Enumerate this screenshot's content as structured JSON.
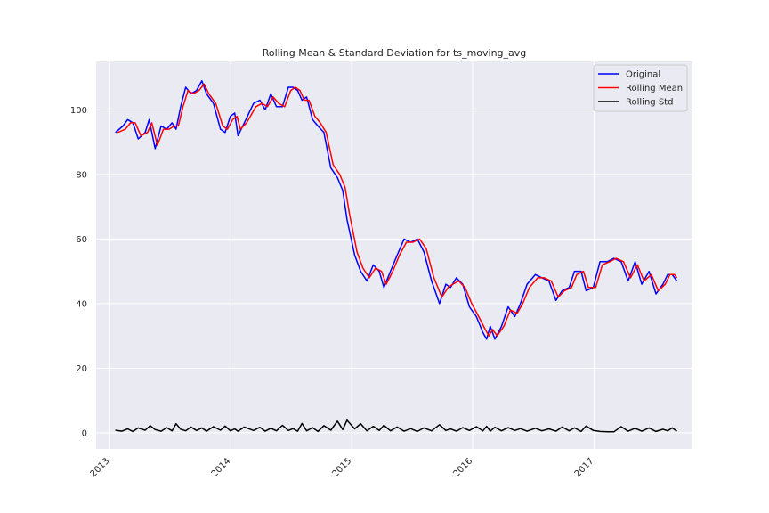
{
  "chart_data": {
    "type": "line",
    "title": "Rolling Mean & Standard Deviation for ts_moving_avg",
    "xlabel": "",
    "ylabel": "",
    "x_ticks": [
      "2013",
      "2014",
      "2015",
      "2016",
      "2017"
    ],
    "y_ticks": [
      0,
      20,
      40,
      60,
      80,
      100
    ],
    "xlim": [
      "2012-11-21",
      "2017-10-25"
    ],
    "ylim": [
      -5,
      115
    ],
    "grid": true,
    "legend_position": "upper right",
    "colors": {
      "background": "#eaeaf2",
      "grid": "#ffffff",
      "original": "#0000ff",
      "rolling_mean": "#ff0000",
      "rolling_std": "#000000"
    },
    "series": [
      {
        "name": "Original",
        "points": [
          [
            "2013-01-18",
            93
          ],
          [
            "2013-02-10",
            95
          ],
          [
            "2013-02-24",
            97
          ],
          [
            "2013-03-12",
            96
          ],
          [
            "2013-03-28",
            91
          ],
          [
            "2013-04-18",
            93
          ],
          [
            "2013-04-30",
            97
          ],
          [
            "2013-05-18",
            88
          ],
          [
            "2013-06-05",
            95
          ],
          [
            "2013-06-22",
            94
          ],
          [
            "2013-07-08",
            96
          ],
          [
            "2013-07-20",
            94
          ],
          [
            "2013-08-03",
            101
          ],
          [
            "2013-08-18",
            107
          ],
          [
            "2013-09-03",
            105
          ],
          [
            "2013-09-20",
            106
          ],
          [
            "2013-10-06",
            109
          ],
          [
            "2013-10-20",
            105
          ],
          [
            "2013-11-10",
            102
          ],
          [
            "2013-12-01",
            94
          ],
          [
            "2013-12-15",
            93
          ],
          [
            "2013-12-31",
            98
          ],
          [
            "2014-01-13",
            99
          ],
          [
            "2014-01-23",
            92
          ],
          [
            "2014-02-11",
            96
          ],
          [
            "2014-03-11",
            102
          ],
          [
            "2014-03-30",
            103
          ],
          [
            "2014-04-15",
            100
          ],
          [
            "2014-05-02",
            105
          ],
          [
            "2014-05-19",
            101
          ],
          [
            "2014-06-06",
            101
          ],
          [
            "2014-06-24",
            107
          ],
          [
            "2014-07-08",
            107
          ],
          [
            "2014-07-22",
            106
          ],
          [
            "2014-08-04",
            103
          ],
          [
            "2014-08-18",
            104
          ],
          [
            "2014-09-05",
            97
          ],
          [
            "2014-09-21",
            95
          ],
          [
            "2014-10-09",
            93
          ],
          [
            "2014-10-30",
            82
          ],
          [
            "2014-11-19",
            79
          ],
          [
            "2014-12-05",
            75
          ],
          [
            "2014-12-18",
            66
          ],
          [
            "2015-01-10",
            55
          ],
          [
            "2015-01-28",
            50
          ],
          [
            "2015-02-16",
            47
          ],
          [
            "2015-03-07",
            52
          ],
          [
            "2015-03-25",
            50
          ],
          [
            "2015-04-08",
            45
          ],
          [
            "2015-04-28",
            50
          ],
          [
            "2015-05-18",
            55
          ],
          [
            "2015-06-08",
            60
          ],
          [
            "2015-06-28",
            59
          ],
          [
            "2015-07-18",
            60
          ],
          [
            "2015-08-07",
            56
          ],
          [
            "2015-08-30",
            47
          ],
          [
            "2015-09-23",
            40
          ],
          [
            "2015-10-12",
            46
          ],
          [
            "2015-10-26",
            45
          ],
          [
            "2015-11-13",
            48
          ],
          [
            "2015-12-02",
            46
          ],
          [
            "2015-12-22",
            39
          ],
          [
            "2016-01-12",
            36
          ],
          [
            "2016-02-01",
            31
          ],
          [
            "2016-02-12",
            29
          ],
          [
            "2016-02-23",
            33
          ],
          [
            "2016-03-08",
            29
          ],
          [
            "2016-03-28",
            33
          ],
          [
            "2016-04-17",
            39
          ],
          [
            "2016-05-07",
            36
          ],
          [
            "2016-05-24",
            40
          ],
          [
            "2016-06-13",
            46
          ],
          [
            "2016-07-08",
            49
          ],
          [
            "2016-07-28",
            48
          ],
          [
            "2016-08-18",
            47
          ],
          [
            "2016-09-08",
            41
          ],
          [
            "2016-09-27",
            44
          ],
          [
            "2016-10-18",
            45
          ],
          [
            "2016-11-03",
            50
          ],
          [
            "2016-11-23",
            50
          ],
          [
            "2016-12-08",
            44
          ],
          [
            "2016-12-30",
            45
          ],
          [
            "2017-01-19",
            53
          ],
          [
            "2017-02-10",
            53
          ],
          [
            "2017-03-02",
            54
          ],
          [
            "2017-03-24",
            53
          ],
          [
            "2017-04-14",
            47
          ],
          [
            "2017-05-05",
            53
          ],
          [
            "2017-05-25",
            46
          ],
          [
            "2017-06-16",
            50
          ],
          [
            "2017-07-07",
            43
          ],
          [
            "2017-07-28",
            46
          ],
          [
            "2017-08-11",
            49
          ],
          [
            "2017-08-25",
            49
          ],
          [
            "2017-09-08",
            47
          ]
        ]
      },
      {
        "name": "Rolling Mean",
        "points": [
          [
            "2013-01-25",
            93
          ],
          [
            "2013-02-17",
            94
          ],
          [
            "2013-03-05",
            96
          ],
          [
            "2013-03-19",
            96
          ],
          [
            "2013-04-05",
            92
          ],
          [
            "2013-04-25",
            93
          ],
          [
            "2013-05-08",
            96
          ],
          [
            "2013-05-25",
            89
          ],
          [
            "2013-06-12",
            94
          ],
          [
            "2013-06-29",
            94
          ],
          [
            "2013-07-15",
            95
          ],
          [
            "2013-07-27",
            95
          ],
          [
            "2013-08-10",
            101
          ],
          [
            "2013-08-25",
            106
          ],
          [
            "2013-09-10",
            105
          ],
          [
            "2013-09-27",
            106
          ],
          [
            "2013-10-13",
            108
          ],
          [
            "2013-10-27",
            105
          ],
          [
            "2013-11-17",
            102
          ],
          [
            "2013-12-08",
            95
          ],
          [
            "2013-12-22",
            94
          ],
          [
            "2014-01-07",
            97
          ],
          [
            "2014-01-20",
            98
          ],
          [
            "2014-01-30",
            94
          ],
          [
            "2014-02-18",
            96
          ],
          [
            "2014-03-18",
            101
          ],
          [
            "2014-04-06",
            102
          ],
          [
            "2014-04-22",
            101
          ],
          [
            "2014-05-09",
            104
          ],
          [
            "2014-05-26",
            102
          ],
          [
            "2014-06-13",
            101
          ],
          [
            "2014-07-01",
            106
          ],
          [
            "2014-07-15",
            107
          ],
          [
            "2014-07-29",
            106
          ],
          [
            "2014-08-11",
            103
          ],
          [
            "2014-08-25",
            103
          ],
          [
            "2014-09-12",
            98
          ],
          [
            "2014-09-28",
            96
          ],
          [
            "2014-10-16",
            93
          ],
          [
            "2014-11-06",
            83
          ],
          [
            "2014-11-26",
            80
          ],
          [
            "2014-12-12",
            76
          ],
          [
            "2014-12-25",
            68
          ],
          [
            "2015-01-17",
            56
          ],
          [
            "2015-02-04",
            51
          ],
          [
            "2015-02-23",
            48
          ],
          [
            "2015-03-14",
            51
          ],
          [
            "2015-04-01",
            50
          ],
          [
            "2015-04-15",
            46
          ],
          [
            "2015-05-05",
            50
          ],
          [
            "2015-05-25",
            55
          ],
          [
            "2015-06-15",
            59
          ],
          [
            "2015-07-05",
            59
          ],
          [
            "2015-07-25",
            60
          ],
          [
            "2015-08-14",
            57
          ],
          [
            "2015-09-06",
            48
          ],
          [
            "2015-09-30",
            42
          ],
          [
            "2015-10-19",
            45
          ],
          [
            "2015-11-02",
            46
          ],
          [
            "2015-11-20",
            47
          ],
          [
            "2015-12-09",
            45
          ],
          [
            "2015-12-29",
            40
          ],
          [
            "2016-01-19",
            36
          ],
          [
            "2016-02-08",
            32
          ],
          [
            "2016-02-19",
            30
          ],
          [
            "2016-03-01",
            32
          ],
          [
            "2016-03-15",
            30
          ],
          [
            "2016-04-04",
            33
          ],
          [
            "2016-04-24",
            38
          ],
          [
            "2016-05-14",
            37
          ],
          [
            "2016-05-31",
            40
          ],
          [
            "2016-06-20",
            45
          ],
          [
            "2016-07-15",
            48
          ],
          [
            "2016-08-04",
            48
          ],
          [
            "2016-08-25",
            47
          ],
          [
            "2016-09-15",
            42
          ],
          [
            "2016-10-04",
            44
          ],
          [
            "2016-10-25",
            45
          ],
          [
            "2016-11-10",
            49
          ],
          [
            "2016-11-30",
            50
          ],
          [
            "2016-12-15",
            45
          ],
          [
            "2017-01-06",
            45
          ],
          [
            "2017-01-26",
            52
          ],
          [
            "2017-02-17",
            53
          ],
          [
            "2017-03-09",
            54
          ],
          [
            "2017-03-31",
            53
          ],
          [
            "2017-04-21",
            48
          ],
          [
            "2017-05-12",
            52
          ],
          [
            "2017-06-01",
            47
          ],
          [
            "2017-06-23",
            49
          ],
          [
            "2017-07-14",
            44
          ],
          [
            "2017-08-04",
            46
          ],
          [
            "2017-08-18",
            49
          ],
          [
            "2017-09-01",
            49
          ],
          [
            "2017-09-08",
            48
          ]
        ]
      },
      {
        "name": "Rolling Std",
        "points": [
          [
            "2013-01-18",
            0.8
          ],
          [
            "2013-02-07",
            0.5
          ],
          [
            "2013-02-24",
            1.2
          ],
          [
            "2013-03-12",
            0.4
          ],
          [
            "2013-03-28",
            1.5
          ],
          [
            "2013-04-18",
            0.8
          ],
          [
            "2013-05-03",
            2.2
          ],
          [
            "2013-05-18",
            1.0
          ],
          [
            "2013-06-05",
            0.5
          ],
          [
            "2013-06-22",
            1.6
          ],
          [
            "2013-07-08",
            0.6
          ],
          [
            "2013-07-20",
            2.8
          ],
          [
            "2013-08-03",
            1.1
          ],
          [
            "2013-08-18",
            0.6
          ],
          [
            "2013-09-03",
            1.8
          ],
          [
            "2013-09-20",
            0.7
          ],
          [
            "2013-10-06",
            1.5
          ],
          [
            "2013-10-20",
            0.5
          ],
          [
            "2013-11-10",
            1.9
          ],
          [
            "2013-12-01",
            0.8
          ],
          [
            "2013-12-15",
            2.1
          ],
          [
            "2013-12-31",
            0.6
          ],
          [
            "2014-01-13",
            1.2
          ],
          [
            "2014-01-23",
            0.5
          ],
          [
            "2014-02-11",
            1.8
          ],
          [
            "2014-03-11",
            0.7
          ],
          [
            "2014-03-30",
            1.7
          ],
          [
            "2014-04-15",
            0.5
          ],
          [
            "2014-05-02",
            1.4
          ],
          [
            "2014-05-19",
            0.6
          ],
          [
            "2014-06-06",
            2.3
          ],
          [
            "2014-06-24",
            0.7
          ],
          [
            "2014-07-08",
            1.3
          ],
          [
            "2014-07-22",
            0.5
          ],
          [
            "2014-08-04",
            2.9
          ],
          [
            "2014-08-18",
            0.6
          ],
          [
            "2014-09-05",
            1.6
          ],
          [
            "2014-09-21",
            0.4
          ],
          [
            "2014-10-09",
            2.2
          ],
          [
            "2014-10-30",
            0.8
          ],
          [
            "2014-11-19",
            3.6
          ],
          [
            "2014-12-05",
            1.0
          ],
          [
            "2014-12-18",
            3.9
          ],
          [
            "2015-01-10",
            1.2
          ],
          [
            "2015-01-28",
            2.8
          ],
          [
            "2015-02-16",
            0.6
          ],
          [
            "2015-03-07",
            2.0
          ],
          [
            "2015-03-25",
            0.7
          ],
          [
            "2015-04-08",
            2.3
          ],
          [
            "2015-04-28",
            0.6
          ],
          [
            "2015-05-18",
            1.8
          ],
          [
            "2015-06-08",
            0.5
          ],
          [
            "2015-06-28",
            1.3
          ],
          [
            "2015-07-18",
            0.4
          ],
          [
            "2015-08-07",
            1.5
          ],
          [
            "2015-08-30",
            0.6
          ],
          [
            "2015-09-23",
            2.5
          ],
          [
            "2015-10-12",
            0.7
          ],
          [
            "2015-10-26",
            1.2
          ],
          [
            "2015-11-13",
            0.5
          ],
          [
            "2015-12-02",
            1.6
          ],
          [
            "2015-12-22",
            0.7
          ],
          [
            "2016-01-12",
            1.9
          ],
          [
            "2016-02-01",
            0.6
          ],
          [
            "2016-02-12",
            2.0
          ],
          [
            "2016-02-23",
            0.5
          ],
          [
            "2016-03-08",
            1.7
          ],
          [
            "2016-03-28",
            0.6
          ],
          [
            "2016-04-17",
            1.6
          ],
          [
            "2016-05-07",
            0.7
          ],
          [
            "2016-05-24",
            1.3
          ],
          [
            "2016-06-13",
            0.5
          ],
          [
            "2016-07-08",
            1.4
          ],
          [
            "2016-07-28",
            0.6
          ],
          [
            "2016-08-18",
            1.2
          ],
          [
            "2016-09-08",
            0.5
          ],
          [
            "2016-09-27",
            1.8
          ],
          [
            "2016-10-18",
            0.6
          ],
          [
            "2016-11-03",
            1.5
          ],
          [
            "2016-11-23",
            0.4
          ],
          [
            "2016-12-08",
            2.1
          ],
          [
            "2016-12-30",
            0.7
          ],
          [
            "2017-01-19",
            0.4
          ],
          [
            "2017-02-10",
            0.3
          ],
          [
            "2017-03-02",
            0.3
          ],
          [
            "2017-03-24",
            1.9
          ],
          [
            "2017-04-14",
            0.5
          ],
          [
            "2017-05-05",
            1.4
          ],
          [
            "2017-05-25",
            0.5
          ],
          [
            "2017-06-16",
            1.5
          ],
          [
            "2017-07-07",
            0.4
          ],
          [
            "2017-07-28",
            1.1
          ],
          [
            "2017-08-11",
            0.6
          ],
          [
            "2017-08-25",
            1.5
          ],
          [
            "2017-09-08",
            0.5
          ]
        ]
      }
    ]
  }
}
